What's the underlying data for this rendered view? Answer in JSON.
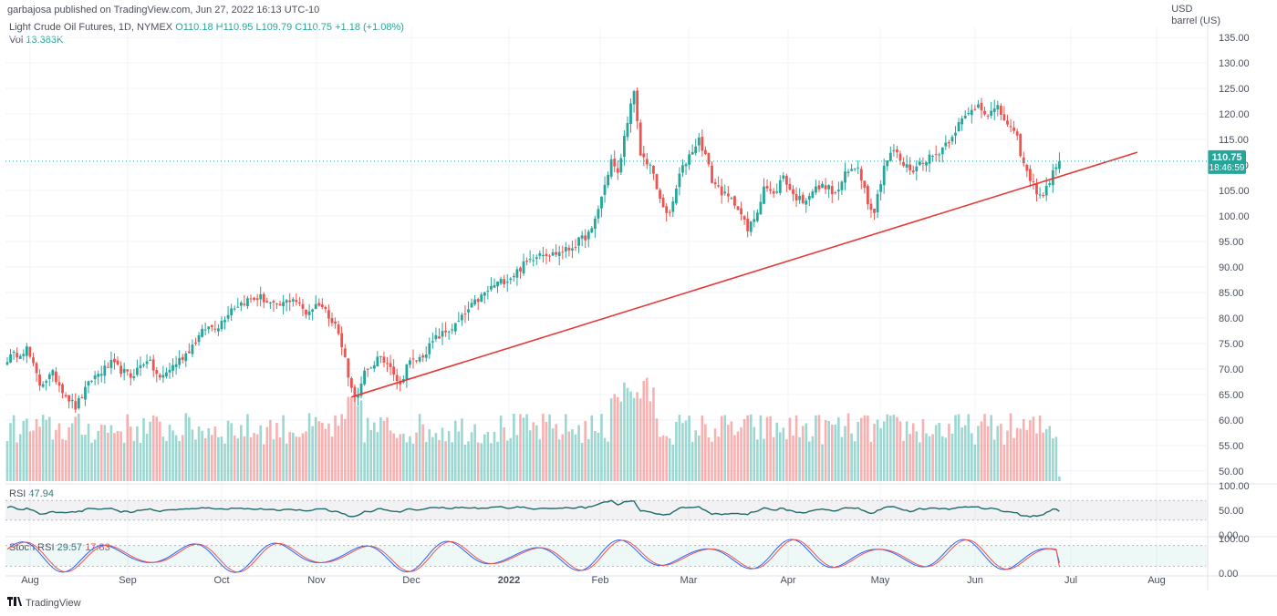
{
  "header": {
    "published": "garbajosa published on TradingView.com, Jun 27, 2022 16:13 UTC-10",
    "symbol": "Light Crude Oil Futures, 1D, NYMEX",
    "ohlc": "O110.18  H110.95  L109.79  C110.75  +1.18 (+1.08%)",
    "volume_label": "Vol",
    "volume_value": "13.383K",
    "currency": "USD",
    "unit": "barrel (US)"
  },
  "price_tag": {
    "value": "110.75",
    "countdown": "18:46:59"
  },
  "rsi": {
    "label": "RSI",
    "value": "47.94"
  },
  "stoch": {
    "label": "Stoch RSI",
    "k": "29.57",
    "d": "17.83"
  },
  "footer": {
    "brand": "TradingView"
  },
  "colors": {
    "up": "#26a69a",
    "down": "#ef5350",
    "trend": "#e53935",
    "rsi_line": "#1e6b6b",
    "grid": "#f0f3fa"
  },
  "chart_data": {
    "type": "candlestick",
    "price_axis": {
      "ylim": [
        48,
        137
      ],
      "ticks": [
        50,
        55,
        60,
        65,
        70,
        75,
        80,
        85,
        90,
        95,
        100,
        105,
        110,
        115,
        120,
        125,
        130,
        135
      ]
    },
    "rsi_axis": {
      "ylim": [
        0,
        100
      ],
      "ticks": [
        "100.00",
        "50.00",
        "0.00"
      ]
    },
    "stoch_axis": {
      "ylim": [
        0,
        100
      ],
      "ticks": [
        "100.00",
        "0.00"
      ]
    },
    "x_labels": [
      "Aug",
      "Sep",
      "Oct",
      "Nov",
      "Dec",
      "2022",
      "Feb",
      "Mar",
      "Apr",
      "May",
      "Jun",
      "Jul",
      "Aug"
    ],
    "close_anchors": [
      [
        0,
        72
      ],
      [
        6,
        74
      ],
      [
        10,
        67
      ],
      [
        14,
        69
      ],
      [
        18,
        65
      ],
      [
        21,
        62.5
      ],
      [
        26,
        68
      ],
      [
        32,
        71
      ],
      [
        38,
        68.5
      ],
      [
        43,
        72
      ],
      [
        47,
        68
      ],
      [
        50,
        70
      ],
      [
        55,
        73
      ],
      [
        61,
        78
      ],
      [
        65,
        78.5
      ],
      [
        69,
        82
      ],
      [
        74,
        83.5
      ],
      [
        78,
        84
      ],
      [
        83,
        82
      ],
      [
        88,
        84
      ],
      [
        92,
        81
      ],
      [
        96,
        83
      ],
      [
        101,
        79
      ],
      [
        104,
        72
      ],
      [
        106,
        66
      ],
      [
        108,
        64.5
      ],
      [
        110,
        69
      ],
      [
        114,
        72
      ],
      [
        118,
        71
      ],
      [
        121,
        66.5
      ],
      [
        123,
        71
      ],
      [
        127,
        72
      ],
      [
        132,
        76
      ],
      [
        138,
        78.5
      ],
      [
        144,
        83
      ],
      [
        150,
        86.5
      ],
      [
        155,
        88
      ],
      [
        160,
        91
      ],
      [
        164,
        93
      ],
      [
        168,
        92.5
      ],
      [
        173,
        93.5
      ],
      [
        177,
        95.5
      ],
      [
        180,
        97
      ],
      [
        184,
        106
      ],
      [
        186,
        111
      ],
      [
        188,
        108
      ],
      [
        191,
        119
      ],
      [
        193,
        124
      ],
      [
        195,
        112
      ],
      [
        198,
        110
      ],
      [
        201,
        103
      ],
      [
        204,
        100
      ],
      [
        207,
        108
      ],
      [
        210,
        112
      ],
      [
        213,
        115
      ],
      [
        215,
        112
      ],
      [
        217,
        107
      ],
      [
        221,
        104
      ],
      [
        225,
        102
      ],
      [
        228,
        97
      ],
      [
        231,
        101
      ],
      [
        233,
        106
      ],
      [
        236,
        104
      ],
      [
        239,
        108
      ],
      [
        242,
        104
      ],
      [
        245,
        103
      ],
      [
        248,
        105
      ],
      [
        252,
        106
      ],
      [
        255,
        104
      ],
      [
        258,
        108
      ],
      [
        262,
        110
      ],
      [
        265,
        103
      ],
      [
        267,
        101
      ],
      [
        270,
        110
      ],
      [
        273,
        113
      ],
      [
        276,
        110
      ],
      [
        279,
        109
      ],
      [
        282,
        111
      ],
      [
        286,
        112
      ],
      [
        290,
        115
      ],
      [
        293,
        118
      ],
      [
        296,
        120
      ],
      [
        299,
        122
      ],
      [
        302,
        120
      ],
      [
        305,
        121
      ],
      [
        308,
        118
      ],
      [
        311,
        115
      ],
      [
        313,
        110
      ],
      [
        315,
        107
      ],
      [
        317,
        105
      ],
      [
        319,
        104
      ],
      [
        321,
        107
      ],
      [
        323,
        109.57
      ],
      [
        324,
        110.75
      ]
    ],
    "trendline": [
      [
        106,
        64.5
      ],
      [
        348,
        112.5
      ]
    ],
    "rsi_last": 47.94,
    "stoch_last": {
      "k": 29.57,
      "d": 17.83
    }
  }
}
